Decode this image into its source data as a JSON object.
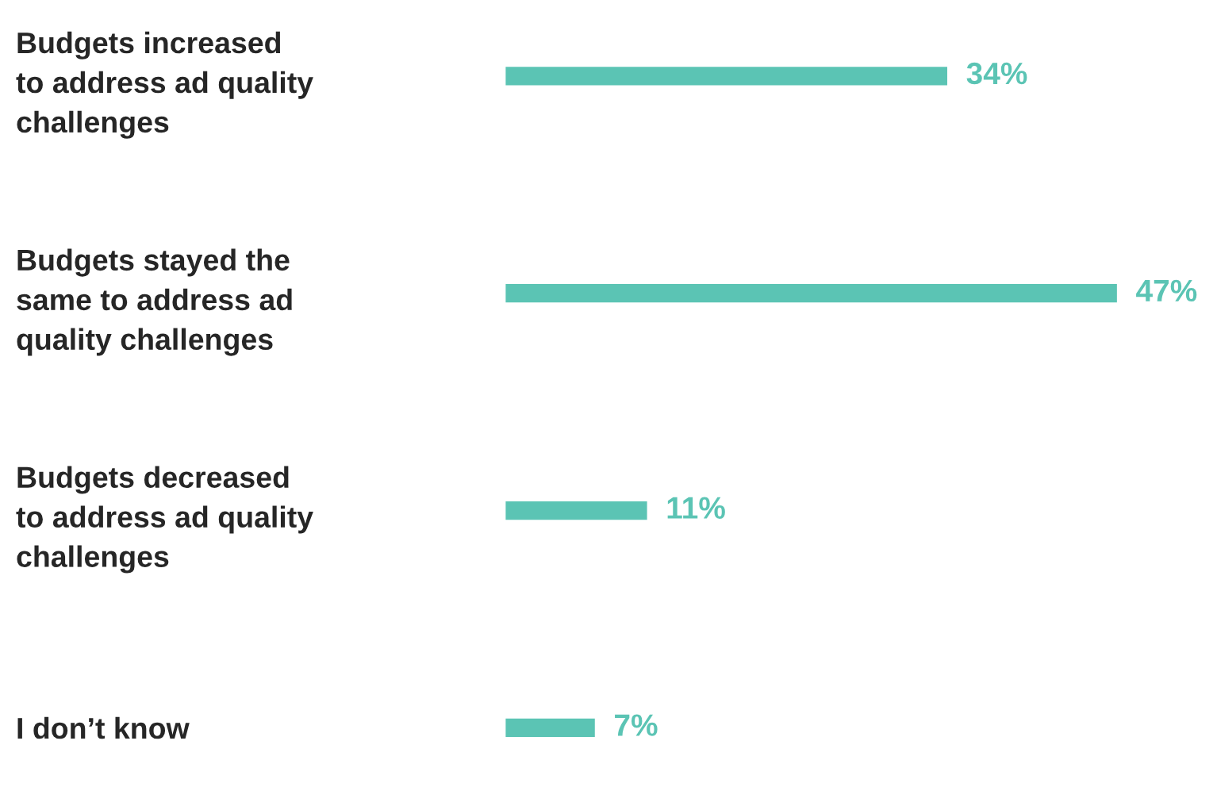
{
  "chart_data": {
    "type": "bar",
    "orientation": "horizontal",
    "categories": [
      "Budgets increased\nto address ad quality\nchallenges",
      "Budgets stayed the\nsame to address ad\nquality challenges",
      "Budgets decreased\nto address ad quality\nchallenges",
      "I don’t know"
    ],
    "values": [
      34,
      47,
      11,
      7
    ],
    "value_labels": [
      "34%",
      "47%",
      "11%",
      "7%"
    ],
    "color": "#5bc4b4",
    "tick_labels": "y",
    "grid": false,
    "legend": false
  }
}
